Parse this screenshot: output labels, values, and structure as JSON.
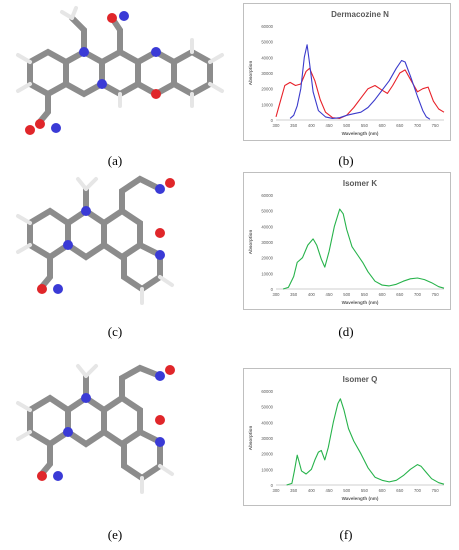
{
  "panels": [
    {
      "id": "a",
      "label": "(a)"
    },
    {
      "id": "b",
      "label": "(b)"
    },
    {
      "id": "c",
      "label": "(c)"
    },
    {
      "id": "d",
      "label": "(d)"
    },
    {
      "id": "e",
      "label": "(e)"
    },
    {
      "id": "f",
      "label": "(f)"
    }
  ],
  "colors": {
    "carbon": "#8c8c8c",
    "hydrogen": "#e6e6e6",
    "nitrogen": "#3a3ad6",
    "oxygen": "#e0262a",
    "red_series": "#e8222a",
    "blue_series": "#3b3bcc",
    "green_series": "#27b34b",
    "axis": "#bfbfbf"
  },
  "chart_data": [
    {
      "type": "line",
      "title": "Dermacozine N",
      "xlabel": "Wavelength (nm)",
      "ylabel": "Absorption",
      "xlim": [
        300,
        775
      ],
      "ylim": [
        0,
        60000
      ],
      "xticks": [
        300,
        350,
        400,
        450,
        500,
        550,
        600,
        650,
        700,
        750
      ],
      "yticks": [
        0,
        10000,
        20000,
        30000,
        40000,
        50000,
        60000
      ],
      "series": [
        {
          "color": "red",
          "points": [
            [
              300,
              2000
            ],
            [
              310,
              10000
            ],
            [
              325,
              22000
            ],
            [
              340,
              24000
            ],
            [
              355,
              22000
            ],
            [
              370,
              23000
            ],
            [
              385,
              31000
            ],
            [
              395,
              33000
            ],
            [
              410,
              25000
            ],
            [
              425,
              13000
            ],
            [
              440,
              5000
            ],
            [
              460,
              1500
            ],
            [
              480,
              1000
            ],
            [
              500,
              3000
            ],
            [
              520,
              8000
            ],
            [
              540,
              14000
            ],
            [
              560,
              20000
            ],
            [
              580,
              22000
            ],
            [
              600,
              19000
            ],
            [
              615,
              17000
            ],
            [
              630,
              22000
            ],
            [
              650,
              30000
            ],
            [
              665,
              32000
            ],
            [
              680,
              26000
            ],
            [
              700,
              18000
            ],
            [
              715,
              20000
            ],
            [
              730,
              21000
            ],
            [
              745,
              12000
            ],
            [
              760,
              7000
            ],
            [
              775,
              5000
            ]
          ]
        },
        {
          "color": "blue",
          "points": [
            [
              340,
              1000
            ],
            [
              350,
              3000
            ],
            [
              360,
              9000
            ],
            [
              370,
              20000
            ],
            [
              380,
              40000
            ],
            [
              388,
              48000
            ],
            [
              395,
              36000
            ],
            [
              405,
              18000
            ],
            [
              420,
              6000
            ],
            [
              440,
              2000
            ],
            [
              460,
              1000
            ],
            [
              480,
              1500
            ],
            [
              500,
              3000
            ],
            [
              520,
              4000
            ],
            [
              540,
              5000
            ],
            [
              560,
              8000
            ],
            [
              580,
              13000
            ],
            [
              600,
              19000
            ],
            [
              620,
              25000
            ],
            [
              640,
              33000
            ],
            [
              655,
              38000
            ],
            [
              665,
              37000
            ],
            [
              680,
              28000
            ],
            [
              700,
              15000
            ],
            [
              715,
              6000
            ],
            [
              725,
              2000
            ],
            [
              735,
              500
            ]
          ]
        }
      ]
    },
    {
      "type": "line",
      "title": "Isomer K",
      "xlabel": "Wavelength (nm)",
      "ylabel": "Absorption",
      "xlim": [
        300,
        775
      ],
      "ylim": [
        0,
        60000
      ],
      "xticks": [
        300,
        350,
        400,
        450,
        500,
        550,
        600,
        650,
        700,
        750
      ],
      "yticks": [
        0,
        10000,
        20000,
        30000,
        40000,
        50000,
        60000
      ],
      "series": [
        {
          "color": "green",
          "points": [
            [
              320,
              0
            ],
            [
              335,
              1000
            ],
            [
              350,
              8000
            ],
            [
              360,
              17000
            ],
            [
              375,
              20000
            ],
            [
              390,
              28000
            ],
            [
              405,
              32000
            ],
            [
              415,
              28000
            ],
            [
              428,
              19000
            ],
            [
              438,
              14000
            ],
            [
              450,
              24000
            ],
            [
              465,
              40000
            ],
            [
              480,
              51000
            ],
            [
              490,
              48000
            ],
            [
              500,
              38000
            ],
            [
              515,
              27000
            ],
            [
              530,
              22000
            ],
            [
              545,
              17000
            ],
            [
              560,
              11000
            ],
            [
              580,
              5000
            ],
            [
              600,
              2500
            ],
            [
              620,
              2000
            ],
            [
              640,
              3000
            ],
            [
              660,
              5000
            ],
            [
              680,
              6500
            ],
            [
              700,
              7000
            ],
            [
              720,
              6000
            ],
            [
              740,
              4000
            ],
            [
              760,
              1500
            ],
            [
              775,
              500
            ]
          ]
        }
      ]
    },
    {
      "type": "line",
      "title": "Isomer Q",
      "xlabel": "Wavelength (nm)",
      "ylabel": "Absorption",
      "xlim": [
        300,
        775
      ],
      "ylim": [
        0,
        60000
      ],
      "xticks": [
        300,
        350,
        400,
        450,
        500,
        550,
        600,
        650,
        700,
        750
      ],
      "yticks": [
        0,
        10000,
        20000,
        30000,
        40000,
        50000,
        60000
      ],
      "series": [
        {
          "color": "green",
          "points": [
            [
              330,
              0
            ],
            [
              345,
              1000
            ],
            [
              352,
              9000
            ],
            [
              360,
              19000
            ],
            [
              365,
              15000
            ],
            [
              372,
              9000
            ],
            [
              385,
              7000
            ],
            [
              400,
              10000
            ],
            [
              410,
              16000
            ],
            [
              420,
              21000
            ],
            [
              428,
              22000
            ],
            [
              438,
              16000
            ],
            [
              448,
              24000
            ],
            [
              462,
              40000
            ],
            [
              475,
              52000
            ],
            [
              482,
              55000
            ],
            [
              492,
              48000
            ],
            [
              505,
              36000
            ],
            [
              520,
              28000
            ],
            [
              540,
              20000
            ],
            [
              560,
              11000
            ],
            [
              580,
              5000
            ],
            [
              600,
              3000
            ],
            [
              620,
              2000
            ],
            [
              640,
              3000
            ],
            [
              660,
              6000
            ],
            [
              680,
              10000
            ],
            [
              700,
              13000
            ],
            [
              710,
              12000
            ],
            [
              725,
              8000
            ],
            [
              740,
              4000
            ],
            [
              760,
              1500
            ],
            [
              775,
              500
            ]
          ]
        }
      ]
    }
  ]
}
